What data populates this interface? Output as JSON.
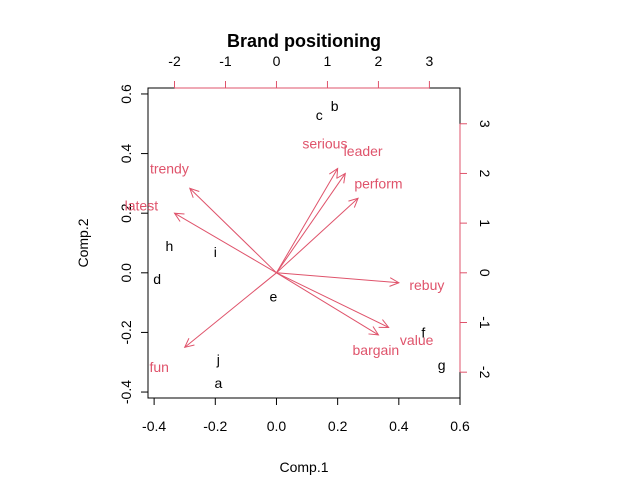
{
  "chart_data": {
    "type": "scatter",
    "subtype": "biplot",
    "title": "Brand positioning",
    "xlabel": "Comp.1",
    "ylabel": "Comp.2",
    "xlim": [
      -0.42,
      0.6
    ],
    "ylim": [
      -0.42,
      0.62
    ],
    "x_ticks": [
      "-0.4",
      "-0.2",
      "0.0",
      "0.2",
      "0.4",
      "0.6"
    ],
    "y_ticks": [
      "-0.4",
      "-0.2",
      "0.0",
      "0.2",
      "0.4",
      "0.6"
    ],
    "secondary_xlim": [
      -2.52,
      3.6
    ],
    "secondary_ylim": [
      -2.52,
      3.72
    ],
    "secondary_x_ticks": [
      "-2",
      "-1",
      "0",
      "1",
      "2",
      "3"
    ],
    "secondary_y_ticks": [
      "-2",
      "-1",
      "0",
      "1",
      "2",
      "3"
    ],
    "points": [
      {
        "label": "a",
        "x": -0.19,
        "y": -0.37
      },
      {
        "label": "b",
        "x": 0.19,
        "y": 0.56
      },
      {
        "label": "c",
        "x": 0.14,
        "y": 0.53
      },
      {
        "label": "d",
        "x": -0.39,
        "y": -0.02
      },
      {
        "label": "e",
        "x": -0.01,
        "y": -0.08
      },
      {
        "label": "f",
        "x": 0.48,
        "y": -0.2
      },
      {
        "label": "g",
        "x": 0.54,
        "y": -0.31
      },
      {
        "label": "h",
        "x": -0.35,
        "y": 0.09
      },
      {
        "label": "i",
        "x": -0.2,
        "y": 0.07
      },
      {
        "label": "j",
        "x": -0.19,
        "y": -0.29
      }
    ],
    "vectors": [
      {
        "label": "serious",
        "x": 1.2,
        "y": 2.1
      },
      {
        "label": "leader",
        "x": 1.35,
        "y": 2.0
      },
      {
        "label": "perform",
        "x": 1.6,
        "y": 1.5
      },
      {
        "label": "trendy",
        "x": -1.7,
        "y": 1.7
      },
      {
        "label": "latest",
        "x": -2.0,
        "y": 1.2
      },
      {
        "label": "rebuy",
        "x": 2.4,
        "y": -0.2
      },
      {
        "label": "value",
        "x": 2.2,
        "y": -1.1
      },
      {
        "label": "bargain",
        "x": 2.0,
        "y": -1.25
      },
      {
        "label": "fun",
        "x": -1.8,
        "y": -1.5
      }
    ],
    "vector_label_positions": [
      {
        "label": "serious",
        "x": 0.95,
        "y": 2.6
      },
      {
        "label": "leader",
        "x": 1.7,
        "y": 2.45
      },
      {
        "label": "perform",
        "x": 2.0,
        "y": 1.8
      },
      {
        "label": "trendy",
        "x": -2.1,
        "y": 2.1
      },
      {
        "label": "latest",
        "x": -2.65,
        "y": 1.35
      },
      {
        "label": "rebuy",
        "x": 2.95,
        "y": -0.25
      },
      {
        "label": "value",
        "x": 2.75,
        "y": -1.35
      },
      {
        "label": "bargain",
        "x": 1.95,
        "y": -1.55
      },
      {
        "label": "fun",
        "x": -2.3,
        "y": -1.9
      }
    ],
    "colors": {
      "points": "#000000",
      "vectors": "#DF536B",
      "axes": "#000000",
      "secondary_axes": "#DF536B"
    }
  }
}
